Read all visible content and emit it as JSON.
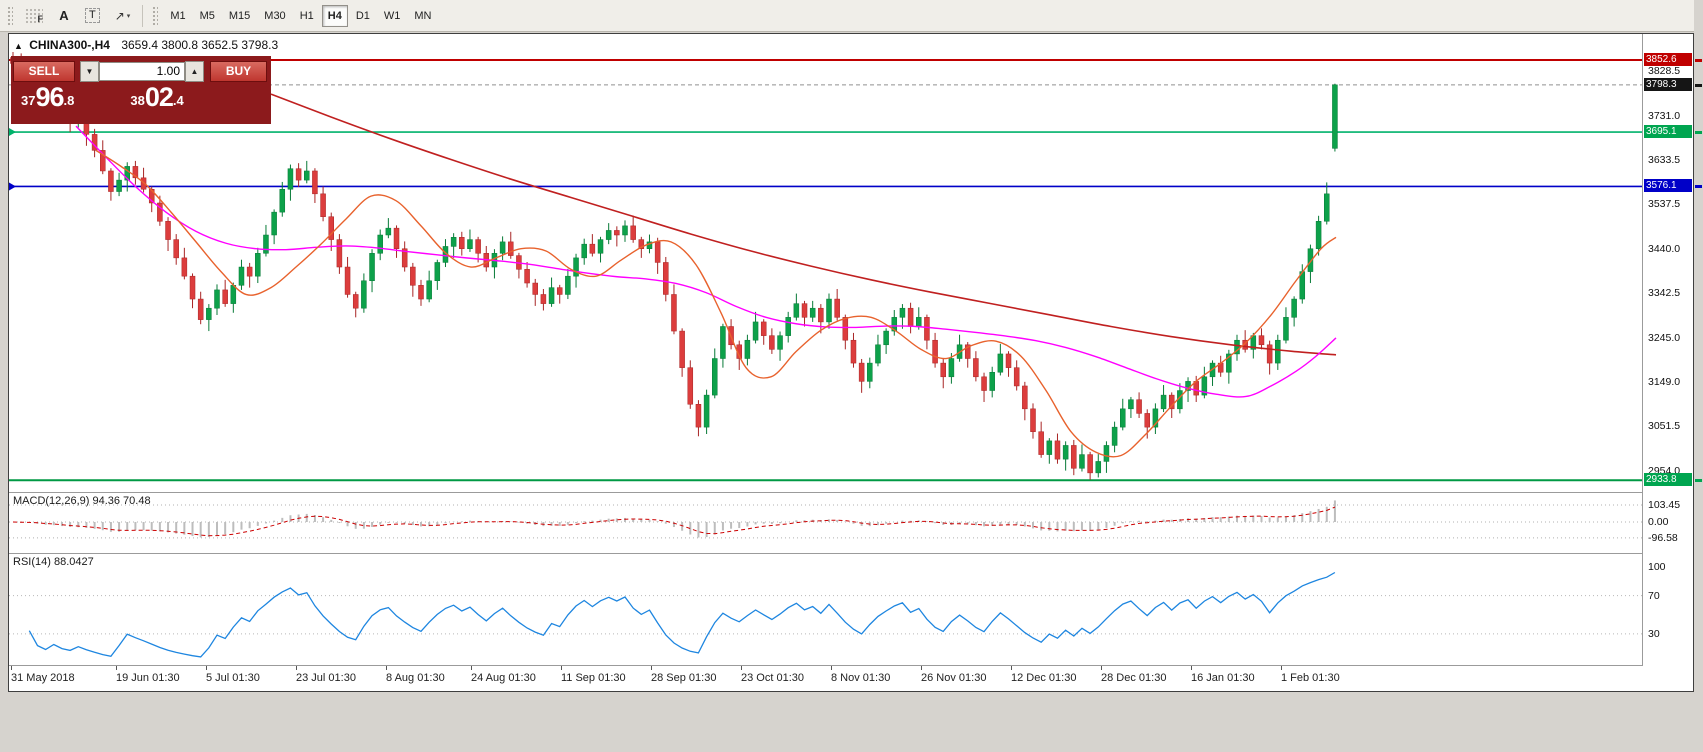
{
  "toolbar": {
    "tools": [
      {
        "name": "templates-tool",
        "glyph": "F"
      },
      {
        "name": "label-tool",
        "glyph": "A"
      },
      {
        "name": "text-tool",
        "glyph": "T"
      },
      {
        "name": "arrows-tool",
        "glyph": "↗"
      }
    ],
    "arrows_caret": "▾",
    "timeframes": [
      "M1",
      "M5",
      "M15",
      "M30",
      "H1",
      "H4",
      "D1",
      "W1",
      "MN"
    ],
    "active_timeframe": "H4"
  },
  "chart_header": {
    "symbol": "CHINA300-,H4",
    "ohlc": "3659.4 3800.8 3652.5 3798.3"
  },
  "trade_panel": {
    "sell_label": "SELL",
    "buy_label": "BUY",
    "volume": "1.00",
    "spin_down_glyph": "▼",
    "spin_up_glyph": "▲",
    "sell_price": "3796.8",
    "buy_price": "3802.4",
    "sell_price_small": "37",
    "sell_price_big": "96",
    "sell_price_pips": ".8",
    "buy_price_small": "38",
    "buy_price_big": "02",
    "buy_price_pips": ".4"
  },
  "chart_data": {
    "type": "candlestick",
    "title": "CHINA300-,H4",
    "timeframe": "H4",
    "last_candle": {
      "open": 3659.4,
      "high": 3800.8,
      "low": 3652.5,
      "close": 3798.3
    },
    "ylim": [
      2908.2,
      3909.4
    ],
    "x_start": 12,
    "x_step": 8.16,
    "first_open": 3858,
    "up_color": "#0DA14A",
    "up_edge": "#077A37",
    "down_color": "#DC3D3D",
    "down_edge": "#A82525",
    "wick_high": [
      12,
      22,
      6,
      16,
      9
    ],
    "wick_low": [
      15,
      7,
      20,
      10,
      25
    ],
    "closes": [
      3845,
      3815,
      3830,
      3790,
      3765,
      3772,
      3738,
      3715,
      3722,
      3690,
      3655,
      3610,
      3565,
      3590,
      3620,
      3595,
      3570,
      3540,
      3500,
      3460,
      3420,
      3380,
      3330,
      3285,
      3310,
      3350,
      3320,
      3360,
      3400,
      3380,
      3430,
      3470,
      3520,
      3570,
      3615,
      3590,
      3610,
      3560,
      3510,
      3460,
      3400,
      3340,
      3310,
      3370,
      3430,
      3470,
      3485,
      3440,
      3400,
      3360,
      3330,
      3370,
      3410,
      3445,
      3465,
      3440,
      3460,
      3430,
      3400,
      3430,
      3455,
      3425,
      3395,
      3365,
      3340,
      3320,
      3355,
      3340,
      3380,
      3420,
      3450,
      3430,
      3460,
      3480,
      3470,
      3490,
      3460,
      3440,
      3455,
      3410,
      3340,
      3260,
      3180,
      3100,
      3050,
      3120,
      3200,
      3270,
      3230,
      3200,
      3240,
      3280,
      3250,
      3220,
      3250,
      3290,
      3320,
      3290,
      3310,
      3280,
      3330,
      3290,
      3240,
      3190,
      3150,
      3190,
      3230,
      3260,
      3290,
      3310,
      3270,
      3290,
      3240,
      3190,
      3160,
      3200,
      3230,
      3200,
      3160,
      3130,
      3170,
      3210,
      3180,
      3140,
      3090,
      3040,
      2990,
      3020,
      2980,
      3010,
      2960,
      2990,
      2950,
      2975,
      3010,
      3050,
      3090,
      3110,
      3080,
      3050,
      3090,
      3120,
      3090,
      3130,
      3150,
      3120,
      3160,
      3190,
      3170,
      3210,
      3240,
      3220,
      3250,
      3230,
      3190,
      3240,
      3290,
      3330,
      3390,
      3440,
      3500,
      3560,
      3798.3
    ],
    "overrides": {
      "0": {
        "open": 3858
      },
      "84": {
        "low": 3030
      },
      "132": {
        "low": 2935
      },
      "161": {
        "high": 3585
      },
      "162": {
        "open": 3659.4,
        "high": 3800.8,
        "low": 3652.5
      }
    },
    "price_ticks": [
      3828.5,
      3731.0,
      3633.5,
      3537.5,
      3440.0,
      3342.5,
      3245.0,
      3149.0,
      3051.5,
      2954.0
    ],
    "hlines": [
      {
        "price": 3852.6,
        "color": "#C00000",
        "width": 2,
        "tag_bg": "#C00000"
      },
      {
        "price": 3695.1,
        "color": "#00B26B",
        "width": 1.6,
        "tag_bg": "#00A550"
      },
      {
        "price": 3576.1,
        "color": "#0000C8",
        "width": 1.6,
        "tag_bg": "#0000C8"
      },
      {
        "price": 2933.8,
        "color": "#009944",
        "width": 2,
        "tag_bg": "#00A550"
      }
    ],
    "current_price": {
      "price": 3798.3,
      "tag_bg": "#151515"
    },
    "ma_lines": [
      {
        "name": "ma-slow-red",
        "color": "#C02020",
        "width": 1.6,
        "points": [
          [
            270,
            3778
          ],
          [
            330,
            3728
          ],
          [
            390,
            3680
          ],
          [
            450,
            3635
          ],
          [
            510,
            3592
          ],
          [
            570,
            3552
          ],
          [
            630,
            3512
          ],
          [
            690,
            3472
          ],
          [
            750,
            3435
          ],
          [
            810,
            3402
          ],
          [
            870,
            3372
          ],
          [
            930,
            3345
          ],
          [
            990,
            3320
          ],
          [
            1050,
            3295
          ],
          [
            1110,
            3270
          ],
          [
            1170,
            3248
          ],
          [
            1230,
            3230
          ],
          [
            1290,
            3216
          ],
          [
            1335,
            3208
          ]
        ]
      },
      {
        "name": "ma-medium-magenta",
        "color": "#FF00FF",
        "width": 1.4,
        "points": [
          [
            75,
            3708
          ],
          [
            105,
            3640
          ],
          [
            135,
            3575
          ],
          [
            165,
            3520
          ],
          [
            195,
            3478
          ],
          [
            225,
            3452
          ],
          [
            255,
            3440
          ],
          [
            285,
            3438
          ],
          [
            315,
            3443
          ],
          [
            345,
            3446
          ],
          [
            375,
            3442
          ],
          [
            405,
            3434
          ],
          [
            435,
            3427
          ],
          [
            465,
            3420
          ],
          [
            495,
            3414
          ],
          [
            525,
            3407
          ],
          [
            555,
            3397
          ],
          [
            585,
            3387
          ],
          [
            615,
            3379
          ],
          [
            645,
            3374
          ],
          [
            675,
            3364
          ],
          [
            705,
            3344
          ],
          [
            735,
            3314
          ],
          [
            765,
            3290
          ],
          [
            795,
            3276
          ],
          [
            825,
            3269
          ],
          [
            855,
            3268
          ],
          [
            885,
            3271
          ],
          [
            915,
            3270
          ],
          [
            945,
            3264
          ],
          [
            975,
            3257
          ],
          [
            1005,
            3249
          ],
          [
            1035,
            3239
          ],
          [
            1065,
            3224
          ],
          [
            1095,
            3204
          ],
          [
            1125,
            3180
          ],
          [
            1155,
            3156
          ],
          [
            1185,
            3136
          ],
          [
            1215,
            3122
          ],
          [
            1245,
            3117
          ],
          [
            1270,
            3140
          ],
          [
            1295,
            3172
          ],
          [
            1315,
            3205
          ],
          [
            1335,
            3245
          ]
        ]
      },
      {
        "name": "ma-fast-orange",
        "color": "#E8622D",
        "width": 1.4,
        "points": [
          [
            95,
            3655
          ],
          [
            120,
            3620
          ],
          [
            145,
            3580
          ],
          [
            170,
            3520
          ],
          [
            195,
            3455
          ],
          [
            220,
            3390
          ],
          [
            245,
            3340
          ],
          [
            270,
            3355
          ],
          [
            295,
            3400
          ],
          [
            320,
            3450
          ],
          [
            345,
            3505
          ],
          [
            370,
            3555
          ],
          [
            395,
            3545
          ],
          [
            420,
            3490
          ],
          [
            445,
            3430
          ],
          [
            470,
            3400
          ],
          [
            495,
            3420
          ],
          [
            520,
            3440
          ],
          [
            545,
            3435
          ],
          [
            570,
            3395
          ],
          [
            595,
            3380
          ],
          [
            620,
            3415
          ],
          [
            645,
            3448
          ],
          [
            670,
            3455
          ],
          [
            695,
            3405
          ],
          [
            720,
            3300
          ],
          [
            745,
            3180
          ],
          [
            770,
            3160
          ],
          [
            795,
            3215
          ],
          [
            820,
            3262
          ],
          [
            845,
            3288
          ],
          [
            870,
            3290
          ],
          [
            895,
            3260
          ],
          [
            920,
            3220
          ],
          [
            945,
            3200
          ],
          [
            970,
            3228
          ],
          [
            995,
            3238
          ],
          [
            1020,
            3205
          ],
          [
            1045,
            3130
          ],
          [
            1070,
            3040
          ],
          [
            1095,
            2995
          ],
          [
            1120,
            2988
          ],
          [
            1145,
            3035
          ],
          [
            1170,
            3095
          ],
          [
            1195,
            3150
          ],
          [
            1220,
            3190
          ],
          [
            1245,
            3235
          ],
          [
            1270,
            3295
          ],
          [
            1295,
            3370
          ],
          [
            1320,
            3440
          ],
          [
            1335,
            3465
          ]
        ]
      }
    ],
    "time_ticks": [
      [
        "31 May 2018",
        10
      ],
      [
        "19 Jun 01:30",
        115
      ],
      [
        "5 Jul 01:30",
        205
      ],
      [
        "23 Jul 01:30",
        295
      ],
      [
        "8 Aug 01:30",
        385
      ],
      [
        "24 Aug 01:30",
        470
      ],
      [
        "11 Sep 01:30",
        560
      ],
      [
        "28 Sep 01:30",
        650
      ],
      [
        "23 Oct 01:30",
        740
      ],
      [
        "8 Nov 01:30",
        830
      ],
      [
        "26 Nov 01:30",
        920
      ],
      [
        "12 Dec 01:30",
        1010
      ],
      [
        "28 Dec 01:30",
        1100
      ],
      [
        "16 Jan 01:30",
        1190
      ],
      [
        "1 Feb 01:30",
        1280
      ]
    ],
    "macd": {
      "label": "MACD(12,26,9) 94.36 70.48",
      "params": [
        12,
        26,
        9
      ],
      "value": 94.36,
      "signal_value": 70.48,
      "scale_values": [
        103.45,
        0,
        -96.58
      ],
      "hist_color": "#BDBDBD",
      "signal_color": "#CC0000"
    },
    "rsi": {
      "label": "RSI(14) 88.0427",
      "period": 14,
      "value": 88.0427,
      "levels": [
        100,
        70,
        30
      ],
      "color": "#1E86E0"
    }
  }
}
